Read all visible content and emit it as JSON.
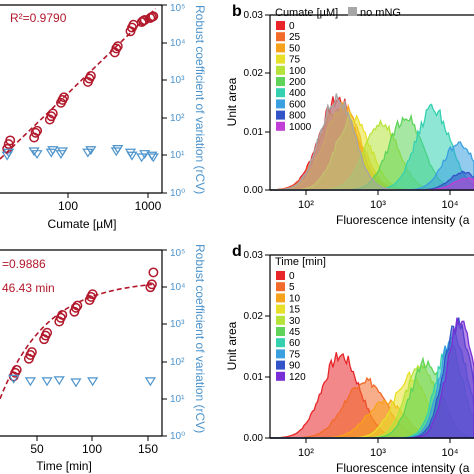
{
  "colors": {
    "fit_red": "#b2182b",
    "cv_blue": "#4d94cc",
    "no_mng_gray": "#a6a6a6"
  },
  "panel_a": {
    "r2_label": "R²=0.9790",
    "xlabel": "Cumate [µM]",
    "right_ylabel": "Robust coefficient of variation (rCV)",
    "x_ticks": [
      "100",
      "1000"
    ],
    "right_ticks": [
      "10⁰",
      "10¹",
      "10²",
      "10³",
      "10⁴",
      "10⁵"
    ]
  },
  "panel_b": {
    "letter": "b",
    "ylabel": "Unit area",
    "xlabel": "Fluorescence intensity (a",
    "y_ticks": [
      "0.00",
      "0.01",
      "0.02",
      "0.03"
    ],
    "x_ticks": [
      "10²",
      "10³",
      "10⁴"
    ],
    "legend_title": "Cumate [µM]",
    "legend_extra": "no mNG"
  },
  "panel_c": {
    "r2_label": "=0.9886",
    "tau_label": "46.43 min",
    "xlabel": "Time [min]",
    "right_ylabel": "Robust coefficient of variation (rCV)",
    "x_ticks": [
      "50",
      "100",
      "150"
    ],
    "right_ticks": [
      "10⁰",
      "10¹",
      "10²",
      "10³",
      "10⁴",
      "10⁵"
    ]
  },
  "panel_d": {
    "letter": "d",
    "ylabel": "Unit area",
    "xlabel": "Fluorescence intensity (a",
    "y_ticks": [
      "0.00",
      "0.01",
      "0.02",
      "0.03"
    ],
    "x_ticks": [
      "10²",
      "10³",
      "10⁴"
    ],
    "legend_title": "Time [min]"
  },
  "chart_data": [
    {
      "panel": "a",
      "type": "scatter",
      "xlabel": "Cumate [µM]",
      "ylabel": "Robust coefficient of variation (rCV)",
      "xscale": "log",
      "yscale": "log",
      "xlim": [
        20,
        1300
      ],
      "ylim": [
        1,
        100000
      ],
      "annotations": [
        "R²=0.9790"
      ],
      "series": [
        {
          "marker": "circle",
          "color": "#b2182b",
          "x": [
            25,
            25,
            25,
            50,
            50,
            50,
            75,
            75,
            75,
            100,
            100,
            100,
            200,
            200,
            200,
            400,
            400,
            400,
            600,
            600,
            600,
            800,
            800,
            800,
            1000,
            1000,
            1000
          ],
          "y": [
            15,
            20,
            25,
            30,
            40,
            45,
            90,
            110,
            130,
            250,
            300,
            350,
            900,
            1100,
            1300,
            5500,
            7000,
            8000,
            20000,
            25000,
            30000,
            35000,
            38000,
            40000,
            45000,
            48000,
            50000
          ]
        },
        {
          "marker": "triangle-down",
          "color": "#4d94cc",
          "x": [
            25,
            25,
            50,
            50,
            75,
            75,
            100,
            100,
            200,
            200,
            400,
            400,
            600,
            600,
            800,
            800,
            1000,
            1000
          ],
          "y": [
            10,
            12,
            11,
            13,
            12,
            14,
            11,
            13,
            14,
            12,
            13,
            15,
            12,
            10,
            11,
            9,
            10,
            9
          ]
        },
        {
          "type": "line",
          "style": "dashed",
          "color": "#b2182b",
          "x": [
            20,
            1100
          ],
          "y": [
            8,
            80000
          ]
        }
      ]
    },
    {
      "panel": "b",
      "type": "area",
      "xlabel": "Fluorescence intensity (a",
      "ylabel": "Unit area",
      "xscale": "log",
      "xlim": [
        30,
        30000
      ],
      "ylim": [
        0,
        0.03
      ],
      "legend": "top-left",
      "series": [
        {
          "name": "0",
          "color": "#e8262a",
          "peak_x": 300,
          "peak_y": 0.0155,
          "width": 0.55
        },
        {
          "name": "25",
          "color": "#f26b2a",
          "peak_x": 310,
          "peak_y": 0.0145,
          "width": 0.55
        },
        {
          "name": "50",
          "color": "#f7a21b",
          "peak_x": 350,
          "peak_y": 0.014,
          "width": 0.55
        },
        {
          "name": "75",
          "color": "#e8e028",
          "peak_x": 500,
          "peak_y": 0.0125,
          "width": 0.5
        },
        {
          "name": "100",
          "color": "#b6e33a",
          "peak_x": 1300,
          "peak_y": 0.0115,
          "width": 0.5
        },
        {
          "name": "200",
          "color": "#5fd35a",
          "peak_x": 3000,
          "peak_y": 0.0125,
          "width": 0.5
        },
        {
          "name": "400",
          "color": "#34d1b0",
          "peak_x": 7500,
          "peak_y": 0.014,
          "width": 0.5
        },
        {
          "name": "600",
          "color": "#3aa0e0",
          "peak_x": 18000,
          "peak_y": 0.008,
          "width": 0.45
        },
        {
          "name": "800",
          "color": "#3254c8",
          "peak_x": 21000,
          "peak_y": 0.003,
          "width": 0.4
        },
        {
          "name": "1000",
          "color": "#c13fd6",
          "peak_x": 24000,
          "peak_y": 0.002,
          "width": 0.4
        },
        {
          "name": "no mNG",
          "color": "#a6a6a6",
          "peak_x": 290,
          "peak_y": 0.016,
          "width": 0.5
        }
      ]
    },
    {
      "panel": "c",
      "type": "scatter",
      "xlabel": "Time [min]",
      "ylabel": "Robust coefficient of variation (rCV)",
      "xlim": [
        0,
        160
      ],
      "ylim": [
        1,
        100000
      ],
      "yscale": "log",
      "annotations": [
        "=0.9886",
        "46.43 min"
      ],
      "series": [
        {
          "marker": "circle",
          "color": "#b2182b",
          "x": [
            15,
            15,
            15,
            30,
            30,
            30,
            45,
            45,
            45,
            60,
            60,
            60,
            75,
            75,
            75,
            90,
            90,
            90,
            150,
            150,
            150
          ],
          "y": [
            40,
            50,
            60,
            120,
            150,
            180,
            400,
            500,
            600,
            1200,
            1500,
            1800,
            2200,
            2800,
            3200,
            4500,
            5500,
            6500,
            10000,
            12000,
            25000
          ]
        },
        {
          "marker": "triangle-down",
          "color": "#4d94cc",
          "x": [
            15,
            30,
            45,
            60,
            75,
            90,
            150
          ],
          "y": [
            35,
            30,
            30,
            32,
            28,
            30,
            30
          ]
        }
      ]
    },
    {
      "panel": "d",
      "type": "area",
      "xlabel": "Fluorescence intensity (a",
      "ylabel": "Unit area",
      "xscale": "log",
      "xlim": [
        30,
        30000
      ],
      "ylim": [
        0,
        0.03
      ],
      "legend": "top-left",
      "series": [
        {
          "name": "0",
          "color": "#e8262a",
          "peak_x": 330,
          "peak_y": 0.0135,
          "width": 0.55
        },
        {
          "name": "5",
          "color": "#f26b2a",
          "peak_x": 750,
          "peak_y": 0.0095,
          "width": 0.6
        },
        {
          "name": "10",
          "color": "#f7a21b",
          "peak_x": 1500,
          "peak_y": 0.006,
          "width": 0.55
        },
        {
          "name": "15",
          "color": "#e8e028",
          "peak_x": 3500,
          "peak_y": 0.01,
          "width": 0.5
        },
        {
          "name": "30",
          "color": "#b6e33a",
          "peak_x": 5000,
          "peak_y": 0.012,
          "width": 0.45
        },
        {
          "name": "45",
          "color": "#5fd35a",
          "peak_x": 6000,
          "peak_y": 0.0125,
          "width": 0.45
        },
        {
          "name": "60",
          "color": "#34d1b0",
          "peak_x": 13000,
          "peak_y": 0.015,
          "width": 0.4
        },
        {
          "name": "75",
          "color": "#3aa0e0",
          "peak_x": 15000,
          "peak_y": 0.017,
          "width": 0.4
        },
        {
          "name": "90",
          "color": "#3254c8",
          "peak_x": 17000,
          "peak_y": 0.0185,
          "width": 0.4
        },
        {
          "name": "120",
          "color": "#7a2fd6",
          "peak_x": 19000,
          "peak_y": 0.019,
          "width": 0.4
        }
      ]
    }
  ]
}
